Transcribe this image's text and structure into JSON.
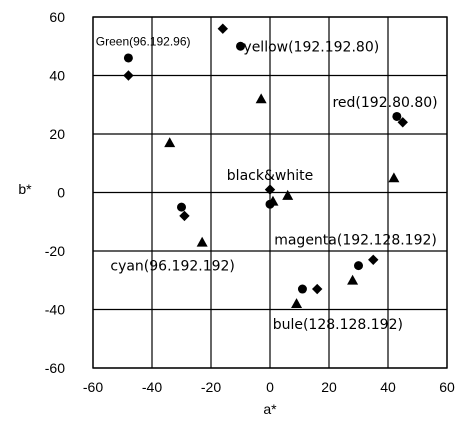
{
  "chart_data": {
    "type": "scatter",
    "xlabel": "a*",
    "ylabel": "b*",
    "xlim": [
      -60,
      60
    ],
    "ylim": [
      -60,
      60
    ],
    "x_ticks": [
      "-60",
      "-40",
      "-20",
      "0",
      "20",
      "40",
      "60"
    ],
    "y_ticks": [
      "60",
      "40",
      "20",
      "0",
      "-20",
      "-40",
      "-60"
    ],
    "grid": true,
    "series": [
      {
        "marker": "circle",
        "points": [
          {
            "x": -48,
            "y": 46
          },
          {
            "x": -10,
            "y": 50
          },
          {
            "x": 43,
            "y": 26
          },
          {
            "x": 0,
            "y": -4
          },
          {
            "x": -30,
            "y": -5
          },
          {
            "x": 30,
            "y": -25
          },
          {
            "x": 11,
            "y": -33
          }
        ]
      },
      {
        "marker": "diamond",
        "points": [
          {
            "x": -48,
            "y": 40
          },
          {
            "x": -16,
            "y": 56
          },
          {
            "x": 45,
            "y": 24
          },
          {
            "x": 0,
            "y": 1
          },
          {
            "x": -29,
            "y": -8
          },
          {
            "x": 35,
            "y": -23
          },
          {
            "x": 16,
            "y": -33
          }
        ]
      },
      {
        "marker": "triangle",
        "points": [
          {
            "x": -3,
            "y": 32
          },
          {
            "x": 42,
            "y": 5
          },
          {
            "x": -34,
            "y": 17
          },
          {
            "x": 1,
            "y": -3
          },
          {
            "x": 6,
            "y": -1
          },
          {
            "x": -23,
            "y": -17
          },
          {
            "x": 28,
            "y": -30
          },
          {
            "x": 9,
            "y": -38
          }
        ]
      }
    ],
    "annotations": [
      {
        "text": "Green(96.192.96)",
        "x": -43,
        "y": 52,
        "size": "sm"
      },
      {
        "text": "yellow(192.192.80)",
        "x": 14,
        "y": 50,
        "size": "lg"
      },
      {
        "text": "red(192.80.80)",
        "x": 39,
        "y": 31,
        "size": "lg"
      },
      {
        "text": "black&white",
        "x": 0,
        "y": 6,
        "size": "lg"
      },
      {
        "text": "magenta(192.128.192)",
        "x": 29,
        "y": -16,
        "size": "lg"
      },
      {
        "text": "cyan(96.192.192)",
        "x": -33,
        "y": -25,
        "size": "lg"
      },
      {
        "text": "bule(128.128.192)",
        "x": 23,
        "y": -45,
        "size": "lg"
      }
    ]
  }
}
